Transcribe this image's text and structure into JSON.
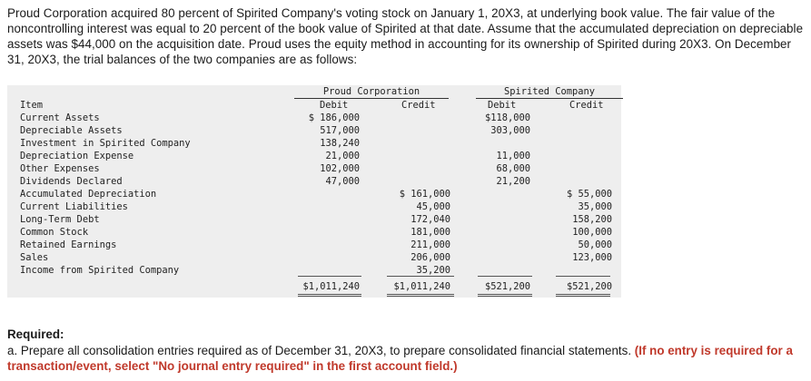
{
  "problem_text": "Proud Corporation acquired 80 percent of Spirited Company's voting stock on January 1, 20X3, at underlying book value. The fair value of the noncontrolling interest was equal to 20 percent of the book value of Spirited at that date. Assume that the accumulated depreciation on depreciable assets was $44,000 on the acquisition date. Proud uses the equity method in accounting for its ownership of Spirited during 20X3. On December 31, 20X3, the trial balances of the two companies are as follows:",
  "table": {
    "group_proud": "Proud Corporation",
    "group_spirited": "Spirited Company",
    "col_item": "Item",
    "col_debit": "Debit",
    "col_credit": "Credit",
    "rows": [
      {
        "item": "Current Assets",
        "pd": "$ 186,000",
        "pc": "",
        "sd": "$118,000",
        "sc": ""
      },
      {
        "item": "Depreciable Assets",
        "pd": "517,000",
        "pc": "",
        "sd": "303,000",
        "sc": ""
      },
      {
        "item": "Investment in Spirited Company",
        "pd": "138,240",
        "pc": "",
        "sd": "",
        "sc": ""
      },
      {
        "item": "Depreciation Expense",
        "pd": "21,000",
        "pc": "",
        "sd": "11,000",
        "sc": ""
      },
      {
        "item": "Other Expenses",
        "pd": "102,000",
        "pc": "",
        "sd": "68,000",
        "sc": ""
      },
      {
        "item": "Dividends Declared",
        "pd": "47,000",
        "pc": "",
        "sd": "21,200",
        "sc": ""
      },
      {
        "item": "Accumulated Depreciation",
        "pd": "",
        "pc": "$ 161,000",
        "sd": "",
        "sc": "$ 55,000"
      },
      {
        "item": "Current Liabilities",
        "pd": "",
        "pc": "45,000",
        "sd": "",
        "sc": "35,000"
      },
      {
        "item": "Long-Term Debt",
        "pd": "",
        "pc": "172,040",
        "sd": "",
        "sc": "158,200"
      },
      {
        "item": "Common Stock",
        "pd": "",
        "pc": "181,000",
        "sd": "",
        "sc": "100,000"
      },
      {
        "item": "Retained Earnings",
        "pd": "",
        "pc": "211,000",
        "sd": "",
        "sc": "50,000"
      },
      {
        "item": "Sales",
        "pd": "",
        "pc": "206,000",
        "sd": "",
        "sc": "123,000"
      },
      {
        "item": "Income from Spirited Company",
        "pd": "",
        "pc": "35,200",
        "sd": "",
        "sc": ""
      }
    ],
    "totals": {
      "pd": "$1,011,240",
      "pc": "$1,011,240",
      "sd": "$521,200",
      "sc": "$521,200"
    }
  },
  "required": {
    "heading": "Required:",
    "body": "a. Prepare all consolidation entries required as of December 31, 20X3, to prepare consolidated financial statements.",
    "note": "(If no entry is required for a transaction/event, select \"No journal entry required\" in the first account field.)"
  }
}
